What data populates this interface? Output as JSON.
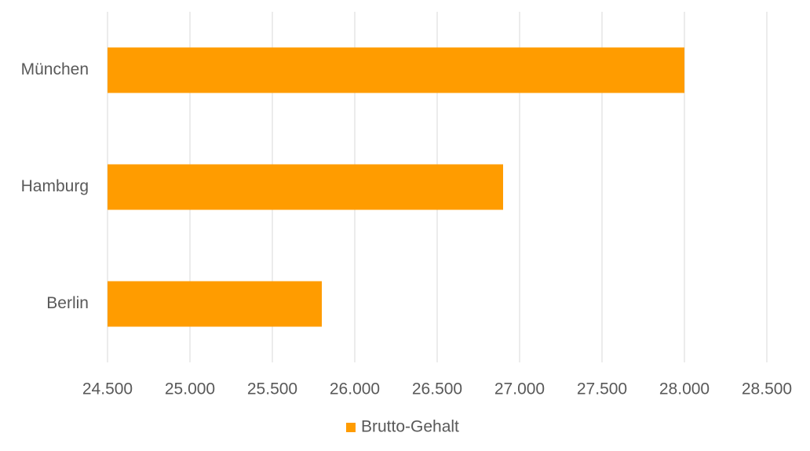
{
  "chart_data": {
    "type": "hbar",
    "categories": [
      "München",
      "Hamburg",
      "Berlin"
    ],
    "series": [
      {
        "name": "Brutto-Gehalt",
        "color": "#ff9c00",
        "values": [
          28000,
          26900,
          25800
        ]
      }
    ],
    "xlim": [
      24500,
      28500
    ],
    "xticks": [
      {
        "value": 24500,
        "label": "24.500"
      },
      {
        "value": 25000,
        "label": "25.000"
      },
      {
        "value": 25500,
        "label": "25.500"
      },
      {
        "value": 26000,
        "label": "26.000"
      },
      {
        "value": 26500,
        "label": "26.500"
      },
      {
        "value": 27000,
        "label": "27.000"
      },
      {
        "value": 27500,
        "label": "27.500"
      },
      {
        "value": 28000,
        "label": "28.000"
      },
      {
        "value": 28500,
        "label": "28.500"
      }
    ],
    "grid": true,
    "legend": "bottom"
  }
}
